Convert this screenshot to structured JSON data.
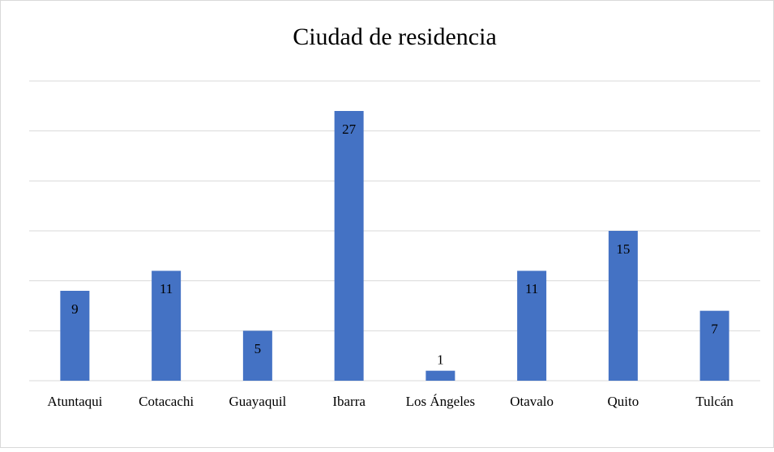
{
  "chart_data": {
    "type": "bar",
    "title": "Ciudad de residencia",
    "categories": [
      "Atuntaqui",
      "Cotacachi",
      "Guayaquil",
      "Ibarra",
      "Los Ángeles",
      "Otavalo",
      "Quito",
      "Tulcán"
    ],
    "values": [
      9,
      11,
      5,
      27,
      1,
      11,
      15,
      7
    ],
    "color": "#4472c4",
    "ylim": [
      0,
      30
    ],
    "yticks": [
      0,
      5,
      10,
      15,
      20,
      25,
      30
    ],
    "grid": true
  }
}
